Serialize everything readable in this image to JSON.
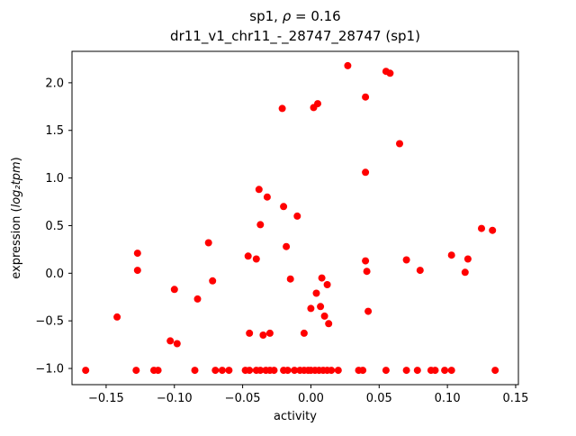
{
  "chart_data": {
    "type": "scatter",
    "title_prefix": "sp1, ",
    "title_rho": "ρ",
    "title_suffix": " = 0.16",
    "subtitle": "dr11_v1_chr11_-_28747_28747 (sp1)",
    "xlabel": "activity",
    "ylabel_prefix": "expression (",
    "ylabel_math": "log₂tpm",
    "ylabel_suffix": ")",
    "marker_color": "#ff0000",
    "marker_radius": 4,
    "grid": false,
    "legend": "none",
    "xlim": [
      -0.175,
      0.152
    ],
    "ylim": [
      -1.17,
      2.33
    ],
    "xticks": [
      {
        "v": -0.15,
        "label": "−0.15"
      },
      {
        "v": -0.1,
        "label": "−0.10"
      },
      {
        "v": -0.05,
        "label": "−0.05"
      },
      {
        "v": 0.0,
        "label": "0.00"
      },
      {
        "v": 0.05,
        "label": "0.05"
      },
      {
        "v": 0.1,
        "label": "0.10"
      },
      {
        "v": 0.15,
        "label": "0.15"
      }
    ],
    "yticks": [
      {
        "v": -1.0,
        "label": "−1.0"
      },
      {
        "v": -0.5,
        "label": "−0.5"
      },
      {
        "v": 0.0,
        "label": "0.0"
      },
      {
        "v": 0.5,
        "label": "0.5"
      },
      {
        "v": 1.0,
        "label": "1.0"
      },
      {
        "v": 1.5,
        "label": "1.5"
      },
      {
        "v": 2.0,
        "label": "2.0"
      }
    ],
    "points": [
      [
        -0.142,
        -0.46
      ],
      [
        -0.127,
        0.21
      ],
      [
        -0.127,
        0.03
      ],
      [
        -0.103,
        -0.71
      ],
      [
        -0.1,
        -0.17
      ],
      [
        -0.098,
        -0.74
      ],
      [
        -0.083,
        -0.27
      ],
      [
        -0.075,
        0.32
      ],
      [
        -0.072,
        -0.08
      ],
      [
        -0.046,
        0.18
      ],
      [
        -0.045,
        -0.63
      ],
      [
        -0.04,
        0.15
      ],
      [
        -0.038,
        0.88
      ],
      [
        -0.037,
        0.51
      ],
      [
        -0.035,
        -0.65
      ],
      [
        -0.032,
        0.8
      ],
      [
        -0.03,
        -0.63
      ],
      [
        -0.021,
        1.73
      ],
      [
        -0.02,
        0.7
      ],
      [
        -0.018,
        0.28
      ],
      [
        -0.015,
        -0.06
      ],
      [
        -0.01,
        0.6
      ],
      [
        -0.005,
        -0.63
      ],
      [
        0.0,
        -0.37
      ],
      [
        0.002,
        1.74
      ],
      [
        0.005,
        1.78
      ],
      [
        0.004,
        -0.21
      ],
      [
        0.007,
        -0.35
      ],
      [
        0.008,
        -0.05
      ],
      [
        0.01,
        -0.45
      ],
      [
        0.012,
        -0.12
      ],
      [
        0.013,
        -0.53
      ],
      [
        0.027,
        2.18
      ],
      [
        0.04,
        1.85
      ],
      [
        0.04,
        1.06
      ],
      [
        0.04,
        0.13
      ],
      [
        0.041,
        0.02
      ],
      [
        0.042,
        -0.4
      ],
      [
        0.055,
        2.12
      ],
      [
        0.058,
        2.1
      ],
      [
        0.065,
        1.36
      ],
      [
        0.07,
        0.14
      ],
      [
        0.08,
        0.03
      ],
      [
        0.103,
        0.19
      ],
      [
        0.113,
        0.01
      ],
      [
        0.115,
        0.15
      ],
      [
        0.125,
        0.47
      ],
      [
        0.133,
        0.45
      ],
      [
        -0.165,
        -1.02
      ],
      [
        -0.128,
        -1.02
      ],
      [
        -0.115,
        -1.02
      ],
      [
        -0.112,
        -1.02
      ],
      [
        -0.085,
        -1.02
      ],
      [
        -0.07,
        -1.02
      ],
      [
        -0.065,
        -1.02
      ],
      [
        -0.06,
        -1.02
      ],
      [
        -0.048,
        -1.02
      ],
      [
        -0.045,
        -1.02
      ],
      [
        -0.04,
        -1.02
      ],
      [
        -0.037,
        -1.02
      ],
      [
        -0.033,
        -1.02
      ],
      [
        -0.03,
        -1.02
      ],
      [
        -0.027,
        -1.02
      ],
      [
        -0.02,
        -1.02
      ],
      [
        -0.017,
        -1.02
      ],
      [
        -0.012,
        -1.02
      ],
      [
        -0.008,
        -1.02
      ],
      [
        -0.005,
        -1.02
      ],
      [
        -0.002,
        -1.02
      ],
      [
        0.0,
        -1.02
      ],
      [
        0.003,
        -1.02
      ],
      [
        0.006,
        -1.02
      ],
      [
        0.009,
        -1.02
      ],
      [
        0.012,
        -1.02
      ],
      [
        0.015,
        -1.02
      ],
      [
        0.02,
        -1.02
      ],
      [
        0.035,
        -1.02
      ],
      [
        0.038,
        -1.02
      ],
      [
        0.055,
        -1.02
      ],
      [
        0.07,
        -1.02
      ],
      [
        0.078,
        -1.02
      ],
      [
        0.088,
        -1.02
      ],
      [
        0.091,
        -1.02
      ],
      [
        0.098,
        -1.02
      ],
      [
        0.103,
        -1.02
      ],
      [
        0.135,
        -1.02
      ]
    ]
  }
}
